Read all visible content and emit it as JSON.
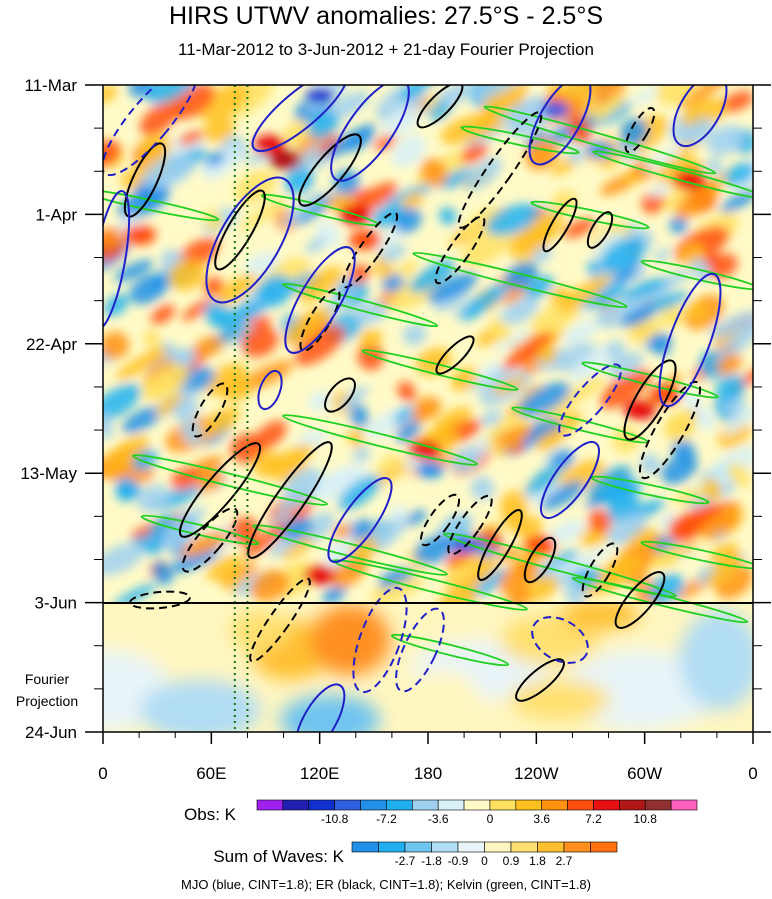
{
  "chart_data": {
    "type": "heatmap",
    "title": "HIRS UTWV anomalies: 27.5°S - 2.5°S",
    "subtitle": "11-Mar-2012 to 3-Jun-2012 + 21-day Fourier Projection",
    "y_tick_labels": [
      "11-Mar",
      "1-Apr",
      "22-Apr",
      "13-May",
      "3-Jun",
      "24-Jun"
    ],
    "x_tick_labels": [
      "0",
      "60E",
      "120E",
      "180",
      "120W",
      "60W",
      "0"
    ],
    "x_ticks_deg": [
      0,
      60,
      120,
      180,
      240,
      300,
      360
    ],
    "y_range": [
      "11-Mar-2012",
      "24-Jun-2012"
    ],
    "x_range_deg": [
      0,
      360
    ],
    "forecast_start": "3-Jun",
    "forecast_label": "Fourier Projection",
    "vertical_reference_lines_deg": [
      73,
      80
    ],
    "obs_colorbar": {
      "label": "Obs: K",
      "levels": [
        -14.4,
        -12.6,
        -10.8,
        -9.0,
        -7.2,
        -5.4,
        -3.6,
        -1.8,
        0,
        1.8,
        3.6,
        5.4,
        7.2,
        9.0,
        10.8,
        12.6
      ],
      "tick_labels": [
        "-10.8",
        "-7.2",
        "-3.6",
        "0",
        "3.6",
        "7.2",
        "10.8"
      ],
      "colors": [
        "#a020f0",
        "#2020b0",
        "#1030d0",
        "#3060e0",
        "#2090e8",
        "#20b0f0",
        "#a0d0f0",
        "#d8f0f8",
        "#fffbc8",
        "#ffe060",
        "#ffc020",
        "#ff9010",
        "#ff5010",
        "#e81010",
        "#b01818",
        "#903030",
        "#ff60c0"
      ]
    },
    "waves_colorbar": {
      "label": "Sum of Waves: K",
      "levels": [
        -3.6,
        -2.7,
        -1.8,
        -0.9,
        0,
        0.9,
        1.8,
        2.7,
        3.6
      ],
      "tick_labels": [
        "-2.7",
        "-1.8",
        "-0.9",
        "0",
        "0.9",
        "1.8",
        "2.7"
      ],
      "colors": [
        "#2090e8",
        "#20b0f0",
        "#70c4f0",
        "#b0dcf4",
        "#e8f4f8",
        "#fff6c0",
        "#ffe070",
        "#ffc030",
        "#ff9020",
        "#ff7010"
      ]
    },
    "contour_series": [
      {
        "name": "MJO",
        "color": "#2020c8",
        "cint": 1.8
      },
      {
        "name": "ER",
        "color": "#000000",
        "cint": 1.8
      },
      {
        "name": "Kelvin",
        "color": "#20d020",
        "cint": 1.8
      }
    ],
    "footer": "MJO (blue, CINT=1.8); ER (black, CINT=1.8); Kelvin (green, CINT=1.8)"
  }
}
